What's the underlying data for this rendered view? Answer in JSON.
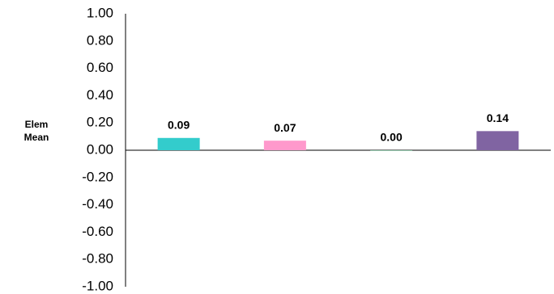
{
  "chart_data": {
    "type": "bar",
    "y_label": "Elem Mean",
    "categories": [
      null,
      null,
      null,
      null
    ],
    "values": [
      0.09,
      0.07,
      0.0,
      0.14
    ],
    "value_labels": [
      "0.09",
      "0.07",
      "0.00",
      "0.14"
    ],
    "colors": [
      "#33cccc",
      "#ff99cc",
      "#339966",
      "#8064a2"
    ],
    "ylim": [
      -1,
      1
    ],
    "yticks": [
      {
        "value": 1,
        "label": "1.00"
      },
      {
        "value": 0.8,
        "label": "0.80"
      },
      {
        "value": 0.6,
        "label": "0.60"
      },
      {
        "value": 0.4,
        "label": "0.40"
      },
      {
        "value": 0.2,
        "label": "0.20"
      },
      {
        "value": 0,
        "label": "0.00"
      },
      {
        "value": -0.2,
        "label": "-0.20"
      },
      {
        "value": -0.4,
        "label": "-0.40"
      },
      {
        "value": -0.6,
        "label": "-0.60"
      },
      {
        "value": -0.8,
        "label": "-0.80"
      },
      {
        "value": -1,
        "label": "-1.00"
      }
    ],
    "grid": false
  }
}
